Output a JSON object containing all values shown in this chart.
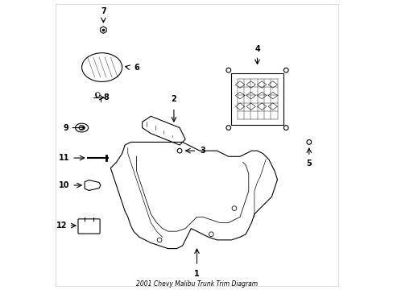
{
  "title": "2001 Chevy Malibu Trunk Trim Diagram",
  "background_color": "#ffffff",
  "line_color": "#000000",
  "figsize": [
    4.89,
    3.6
  ],
  "dpi": 100
}
